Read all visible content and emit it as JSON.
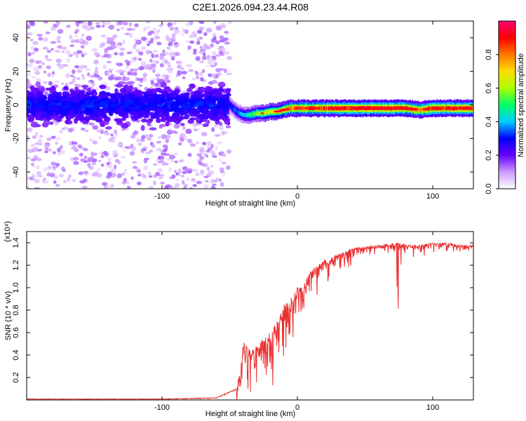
{
  "figure": {
    "title": "C2E1.2026.094.23.44.R08"
  },
  "chart_data": [
    {
      "type": "heatmap",
      "xlabel": "Height of straight line (km)",
      "ylabel": "Frequency (Hz)",
      "xlim": [
        -200,
        130
      ],
      "ylim": [
        -50,
        50
      ],
      "x_ticks": [
        -100,
        0,
        100
      ],
      "x_tick_labels": [
        "-100",
        "0",
        "100"
      ],
      "y_ticks": [
        -40,
        -20,
        0,
        20,
        40
      ],
      "y_tick_labels": [
        "-40",
        "-20",
        "0",
        "20",
        "40"
      ],
      "colorbar": {
        "label": "Normalized spectral amplitude",
        "range": [
          0,
          1
        ],
        "ticks": [
          0.0,
          0.2,
          0.4,
          0.6,
          0.8
        ],
        "tick_labels": [
          "0.0",
          "0.2",
          "0.4",
          "0.6",
          "0.8"
        ],
        "colors": [
          "#ffffff",
          "#cc99ff",
          "#6600ff",
          "#0000ff",
          "#00ccff",
          "#00ff66",
          "#aaff00",
          "#ffdd00",
          "#ff7700",
          "#ff0000",
          "#ff0077"
        ]
      },
      "regions": [
        {
          "x_range": [
            -200,
            -50
          ],
          "frequency_center": 0,
          "description_level": "noise"
        },
        {
          "x_range": [
            -50,
            130
          ],
          "frequency_center": -2,
          "description_level": "signal"
        }
      ],
      "trace": {
        "x": [
          -50,
          -45,
          -40,
          -35,
          -30,
          -25,
          -20,
          -15,
          -10,
          -5,
          0,
          10,
          20,
          40,
          60,
          80,
          90,
          100,
          130
        ],
        "freq": [
          0,
          -4,
          -6,
          -6,
          -5,
          -5,
          -4,
          -4,
          -3,
          -2,
          -2,
          -2,
          -2,
          -2,
          -2,
          -2,
          -3,
          -2,
          -2
        ],
        "amplitude": [
          0.3,
          0.35,
          0.4,
          0.5,
          0.55,
          0.6,
          0.65,
          0.7,
          0.75,
          0.8,
          0.8,
          0.82,
          0.85,
          0.9,
          0.9,
          0.85,
          0.8,
          0.88,
          0.85
        ]
      }
    },
    {
      "type": "line",
      "xlabel": "Height of straight line (km)",
      "ylabel": "SNR (10 * v/v)",
      "scale_label": "(x10⁴)",
      "xlim": [
        -200,
        130
      ],
      "ylim": [
        0,
        1.5
      ],
      "x_ticks": [
        -100,
        0,
        100
      ],
      "x_tick_labels": [
        "-100",
        "0",
        "100"
      ],
      "y_ticks": [
        0.2,
        0.4,
        0.6,
        0.8,
        1.0,
        1.2,
        1.4
      ],
      "y_tick_labels": [
        "0.2",
        "0.4",
        "0.6",
        "0.8",
        "1.0",
        "1.2",
        "1.4"
      ],
      "color": "#e83030",
      "series": [
        {
          "x": [
            -200,
            -150,
            -100,
            -60,
            -45,
            -42,
            -40,
            -38,
            -35,
            -30,
            -25,
            -20,
            -15,
            -10,
            -5,
            0,
            5,
            10,
            20,
            30,
            40,
            60,
            75,
            80,
            90,
            100,
            110,
            120,
            130
          ],
          "values": [
            0.01,
            0.01,
            0.01,
            0.02,
            0.1,
            0.3,
            0.5,
            0.55,
            0.45,
            0.5,
            0.55,
            0.6,
            0.7,
            0.85,
            0.9,
            1.0,
            1.05,
            1.15,
            1.25,
            1.3,
            1.35,
            1.38,
            1.4,
            1.38,
            1.38,
            1.4,
            1.4,
            1.38,
            1.38
          ]
        }
      ]
    }
  ]
}
